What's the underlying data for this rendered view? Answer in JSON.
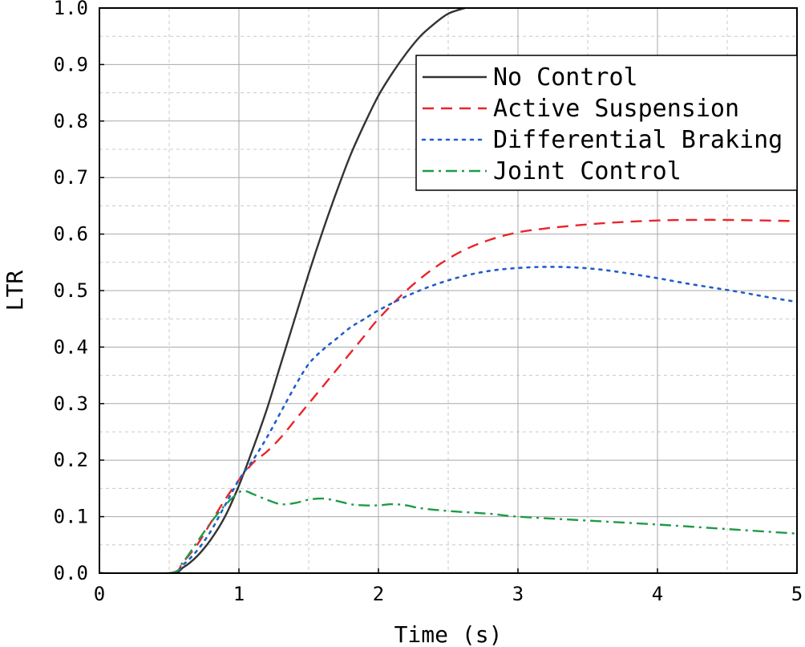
{
  "chart_data": {
    "type": "line",
    "xlabel": "Time (s)",
    "ylabel": "LTR",
    "xlim": [
      0,
      5
    ],
    "ylim": [
      0,
      1.0
    ],
    "xticks": [
      "0",
      "1",
      "2",
      "3",
      "4",
      "5"
    ],
    "yticks": [
      "0.0",
      "0.1",
      "0.2",
      "0.3",
      "0.4",
      "0.5",
      "0.6",
      "0.7",
      "0.8",
      "0.9",
      "1.0"
    ],
    "grid": true,
    "minor_grid": true,
    "legend_position": "top-right",
    "series": [
      {
        "name": "No Control",
        "color": "#333333",
        "style": "solid",
        "x": [
          0,
          0.5,
          0.6,
          0.7,
          0.8,
          0.9,
          1.0,
          1.1,
          1.2,
          1.3,
          1.4,
          1.5,
          1.6,
          1.7,
          1.8,
          1.9,
          2.0,
          2.1,
          2.2,
          2.3,
          2.4,
          2.5,
          2.62
        ],
        "y": [
          0,
          0,
          0.01,
          0.03,
          0.06,
          0.1,
          0.155,
          0.22,
          0.29,
          0.37,
          0.45,
          0.53,
          0.605,
          0.675,
          0.74,
          0.795,
          0.845,
          0.885,
          0.92,
          0.95,
          0.972,
          0.99,
          1.0
        ]
      },
      {
        "name": "Active Suspension",
        "color": "#e8262a",
        "style": "dashed",
        "x": [
          0,
          0.5,
          0.6,
          0.7,
          0.8,
          0.9,
          1.0,
          1.1,
          1.2,
          1.3,
          1.4,
          1.5,
          1.6,
          1.7,
          1.8,
          1.9,
          2.0,
          2.2,
          2.4,
          2.6,
          2.8,
          3.0,
          3.2,
          3.4,
          3.6,
          3.8,
          4.0,
          4.2,
          4.5,
          5.0
        ],
        "y": [
          0,
          0,
          0.02,
          0.05,
          0.09,
          0.13,
          0.165,
          0.195,
          0.215,
          0.24,
          0.27,
          0.3,
          0.33,
          0.36,
          0.39,
          0.42,
          0.45,
          0.5,
          0.54,
          0.57,
          0.59,
          0.603,
          0.61,
          0.615,
          0.619,
          0.622,
          0.624,
          0.625,
          0.625,
          0.623
        ]
      },
      {
        "name": "Differential Braking",
        "color": "#1f5fc9",
        "style": "dotted",
        "x": [
          0,
          0.5,
          0.6,
          0.7,
          0.8,
          0.9,
          1.0,
          1.1,
          1.2,
          1.3,
          1.4,
          1.5,
          1.6,
          1.7,
          1.8,
          1.9,
          2.0,
          2.2,
          2.4,
          2.6,
          2.8,
          3.0,
          3.2,
          3.4,
          3.6,
          3.8,
          4.0,
          4.2,
          4.4,
          4.6,
          4.8,
          5.0
        ],
        "y": [
          0,
          0,
          0.015,
          0.04,
          0.075,
          0.12,
          0.165,
          0.2,
          0.24,
          0.285,
          0.33,
          0.37,
          0.395,
          0.415,
          0.435,
          0.45,
          0.465,
          0.49,
          0.51,
          0.525,
          0.535,
          0.54,
          0.542,
          0.541,
          0.537,
          0.53,
          0.522,
          0.513,
          0.505,
          0.497,
          0.488,
          0.48
        ]
      },
      {
        "name": "Joint Control",
        "color": "#1f9a48",
        "style": "dashdot",
        "x": [
          0,
          0.5,
          0.6,
          0.7,
          0.8,
          0.9,
          1.0,
          1.05,
          1.1,
          1.2,
          1.3,
          1.4,
          1.5,
          1.6,
          1.7,
          1.8,
          1.9,
          2.0,
          2.1,
          2.2,
          2.3,
          2.5,
          2.8,
          3.0,
          3.5,
          4.0,
          4.5,
          5.0
        ],
        "y": [
          0,
          0,
          0.02,
          0.055,
          0.09,
          0.12,
          0.143,
          0.145,
          0.14,
          0.13,
          0.122,
          0.124,
          0.13,
          0.132,
          0.128,
          0.122,
          0.12,
          0.12,
          0.122,
          0.12,
          0.115,
          0.11,
          0.105,
          0.1,
          0.093,
          0.086,
          0.078,
          0.07
        ]
      }
    ]
  }
}
